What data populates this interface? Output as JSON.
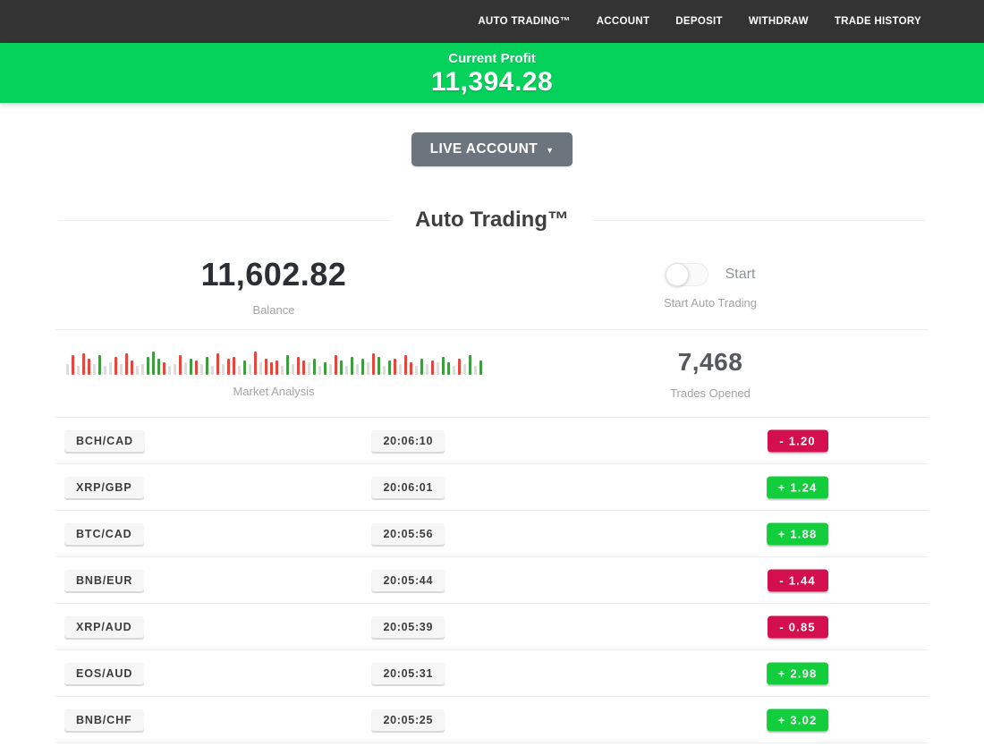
{
  "nav": {
    "items": [
      {
        "label": "AUTO TRADING™"
      },
      {
        "label": "ACCOUNT"
      },
      {
        "label": "DEPOSIT"
      },
      {
        "label": "WITHDRAW"
      },
      {
        "label": "TRADE HISTORY"
      }
    ]
  },
  "profit_banner": {
    "label": "Current Profit",
    "value": "11,394.28"
  },
  "account_selector": {
    "label": "LIVE ACCOUNT",
    "caret": "▼"
  },
  "page": {
    "title": "Auto Trading™"
  },
  "stats": {
    "balance": {
      "value": "11,602.82",
      "label": "Balance"
    },
    "auto_trading": {
      "toggle_label": "Start",
      "label": "Start Auto Trading",
      "toggle_on": false
    },
    "market_analysis": {
      "label": "Market Analysis",
      "bars": [
        [
          "n",
          12
        ],
        [
          "r",
          22
        ],
        [
          "n",
          10
        ],
        [
          "r",
          24
        ],
        [
          "r",
          18
        ],
        [
          "n",
          12
        ],
        [
          "g",
          22
        ],
        [
          "n",
          10
        ],
        [
          "n",
          14
        ],
        [
          "r",
          20
        ],
        [
          "n",
          12
        ],
        [
          "r",
          24
        ],
        [
          "r",
          16
        ],
        [
          "n",
          10
        ],
        [
          "n",
          12
        ],
        [
          "g",
          20
        ],
        [
          "g",
          26
        ],
        [
          "g",
          18
        ],
        [
          "r",
          14
        ],
        [
          "n",
          10
        ],
        [
          "n",
          12
        ],
        [
          "r",
          22
        ],
        [
          "n",
          14
        ],
        [
          "g",
          18
        ],
        [
          "r",
          16
        ],
        [
          "n",
          12
        ],
        [
          "g",
          20
        ],
        [
          "n",
          10
        ],
        [
          "r",
          24
        ],
        [
          "n",
          12
        ],
        [
          "r",
          18
        ],
        [
          "r",
          20
        ],
        [
          "n",
          10
        ],
        [
          "g",
          16
        ],
        [
          "n",
          12
        ],
        [
          "r",
          26
        ],
        [
          "n",
          14
        ],
        [
          "r",
          18
        ],
        [
          "r",
          14
        ],
        [
          "r",
          16
        ],
        [
          "n",
          10
        ],
        [
          "g",
          22
        ],
        [
          "n",
          12
        ],
        [
          "r",
          20
        ],
        [
          "r",
          16
        ],
        [
          "n",
          14
        ],
        [
          "g",
          18
        ],
        [
          "n",
          10
        ],
        [
          "g",
          14
        ],
        [
          "n",
          12
        ],
        [
          "r",
          22
        ],
        [
          "g",
          16
        ],
        [
          "n",
          10
        ],
        [
          "g",
          20
        ],
        [
          "n",
          12
        ],
        [
          "g",
          18
        ],
        [
          "n",
          14
        ],
        [
          "r",
          24
        ],
        [
          "g",
          20
        ],
        [
          "n",
          10
        ],
        [
          "g",
          16
        ],
        [
          "r",
          18
        ],
        [
          "n",
          12
        ],
        [
          "r",
          22
        ],
        [
          "r",
          14
        ],
        [
          "n",
          10
        ],
        [
          "g",
          18
        ],
        [
          "n",
          12
        ],
        [
          "r",
          16
        ],
        [
          "n",
          14
        ],
        [
          "g",
          20
        ],
        [
          "g",
          14
        ],
        [
          "n",
          10
        ],
        [
          "r",
          18
        ],
        [
          "n",
          12
        ],
        [
          "g",
          22
        ],
        [
          "n",
          10
        ],
        [
          "g",
          16
        ]
      ]
    },
    "trades_opened": {
      "value": "7,468",
      "label": "Trades Opened"
    }
  },
  "trades": [
    {
      "pair": "BCH/CAD",
      "time": "20:06:10",
      "result": "-  1.20",
      "direction": "loss"
    },
    {
      "pair": "XRP/GBP",
      "time": "20:06:01",
      "result": "+  1.24",
      "direction": "profit"
    },
    {
      "pair": "BTC/CAD",
      "time": "20:05:56",
      "result": "+  1.88",
      "direction": "profit"
    },
    {
      "pair": "BNB/EUR",
      "time": "20:05:44",
      "result": "-  1.44",
      "direction": "loss"
    },
    {
      "pair": "XRP/AUD",
      "time": "20:05:39",
      "result": "-  0.85",
      "direction": "loss"
    },
    {
      "pair": "EOS/AUD",
      "time": "20:05:31",
      "result": "+  2.98",
      "direction": "profit"
    },
    {
      "pair": "BNB/CHF",
      "time": "20:05:25",
      "result": "+  3.02",
      "direction": "profit"
    }
  ],
  "colors": {
    "nav_bg": "#333333",
    "banner_green": "#05d25b",
    "profit_badge": "#12ce3d",
    "loss_badge": "#d40f4e",
    "chart_red": "#e8453c",
    "chart_green": "#3c9e3c",
    "chart_gray": "#dcdcdc"
  }
}
